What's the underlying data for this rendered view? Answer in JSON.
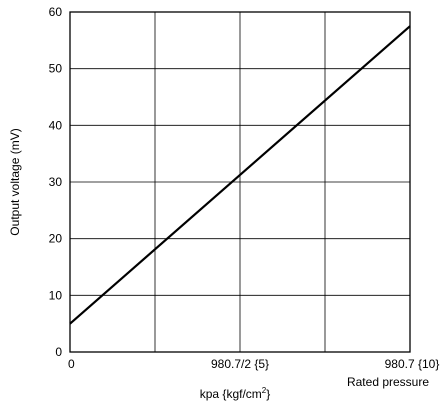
{
  "chart_data": {
    "type": "line",
    "title": "",
    "xlabel": "kpa {kgf/cm",
    "xlabel_sup": "2",
    "xlabel_close": "}",
    "ylabel": "Output voltage (mV)",
    "xlim": [
      0,
      1
    ],
    "ylim": [
      0,
      60
    ],
    "grid": true,
    "x_ticks": [
      {
        "value": 0,
        "label": "0"
      },
      {
        "value": 0.5,
        "label": "980.7/2 {5}"
      },
      {
        "value": 1,
        "label": "980.7 {10}"
      }
    ],
    "x_tick_note": "Rated pressure",
    "x_gridlines": [
      0.25,
      0.5,
      0.75
    ],
    "y_ticks": [
      0,
      10,
      20,
      30,
      40,
      50,
      60
    ],
    "series": [
      {
        "x": [
          0,
          1
        ],
        "y": [
          5,
          57.5
        ]
      }
    ]
  }
}
